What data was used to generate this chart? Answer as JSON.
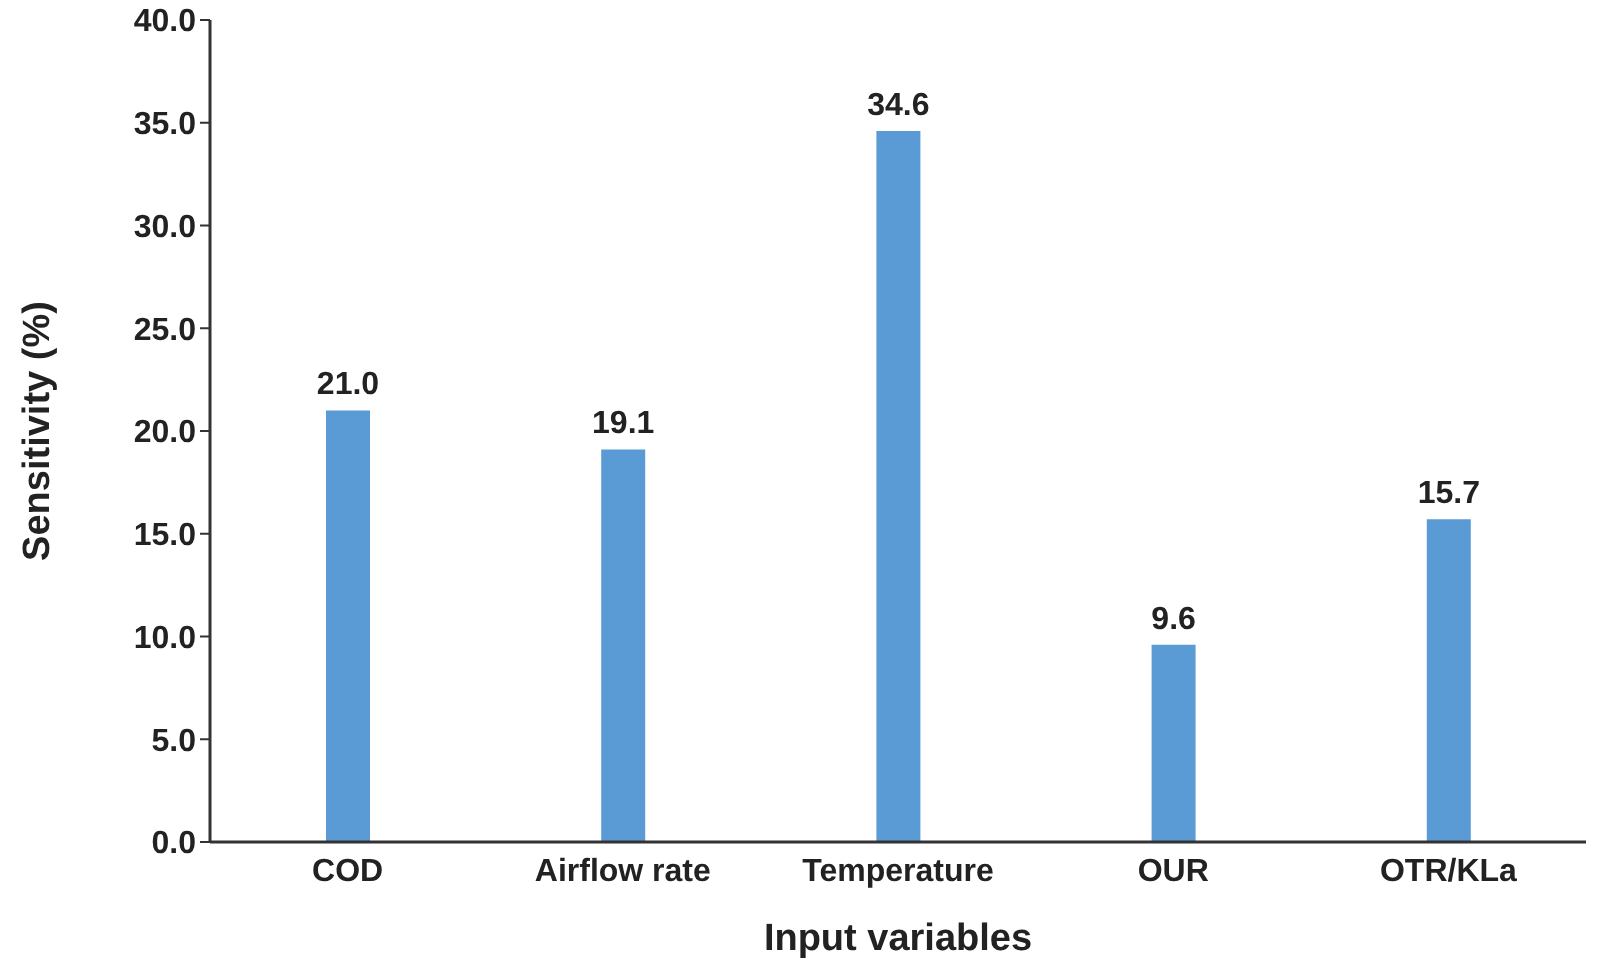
{
  "chart_data": {
    "type": "bar",
    "xlabel": "Input variables",
    "ylabel": "Sensitivity (%)",
    "categories": [
      "COD",
      "Airflow rate",
      "Temperature",
      "OUR",
      "OTR/KLa"
    ],
    "values": [
      21.0,
      19.1,
      34.6,
      9.6,
      15.7
    ],
    "color": "#5b9bd5",
    "ylim": [
      0,
      40
    ],
    "yticks": [
      {
        "value": 0,
        "label": "0.0"
      },
      {
        "value": 5,
        "label": "5.0"
      },
      {
        "value": 10,
        "label": "10.0"
      },
      {
        "value": 15,
        "label": "15.0"
      },
      {
        "value": 20,
        "label": "20.0"
      },
      {
        "value": 25,
        "label": "25.0"
      },
      {
        "value": 30,
        "label": "30.0"
      },
      {
        "value": 35,
        "label": "35.0"
      },
      {
        "value": 40,
        "label": "40.0"
      }
    ],
    "value_labels": [
      "21.0",
      "19.1",
      "34.6",
      "9.6",
      "15.7"
    ],
    "grid": false
  }
}
